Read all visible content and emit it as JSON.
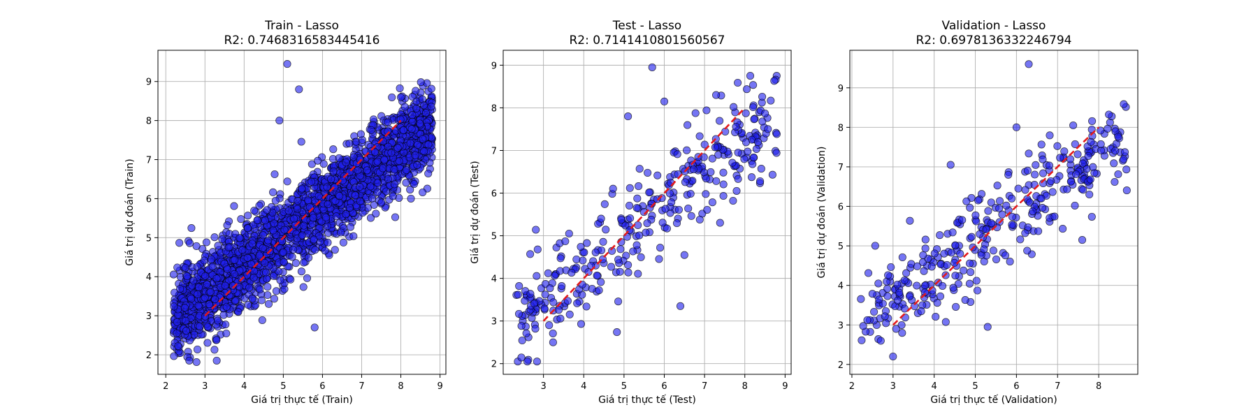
{
  "colors": {
    "points": "#2020ee",
    "point_edge": "#000000",
    "reference_line": "#e31a1c",
    "grid": "#b0b0b0"
  },
  "chart_data": [
    {
      "type": "scatter",
      "title": "Train - Lasso",
      "subtitle": "R2: 0.7468316583445416",
      "xlabel": "Giá trị thực tế (Train)",
      "ylabel": "Giá trị dự đoán (Train)",
      "xlim": [
        1.8,
        9.15
      ],
      "ylim": [
        1.5,
        9.8
      ],
      "xticks": [
        2,
        3,
        4,
        5,
        6,
        7,
        8,
        9
      ],
      "yticks": [
        2,
        3,
        4,
        5,
        6,
        7,
        8,
        9
      ],
      "grid": true,
      "reference_line": {
        "from": [
          3,
          3
        ],
        "to": [
          8,
          8
        ]
      },
      "n_points": 2400,
      "x_range": [
        2.2,
        8.8
      ],
      "approx_fit": {
        "slope": 0.75,
        "intercept": 1.3,
        "noise_sd": 0.55
      },
      "outliers": [
        [
          5.1,
          9.45
        ],
        [
          5.4,
          8.8
        ],
        [
          2.6,
          1.85
        ],
        [
          3.3,
          1.85
        ],
        [
          5.8,
          2.7
        ],
        [
          4.9,
          8.0
        ]
      ],
      "seed": 11
    },
    {
      "type": "scatter",
      "title": "Test - Lasso",
      "subtitle": "R2: 0.7141410801560567",
      "xlabel": "Giá trị thực tế (Test)",
      "ylabel": "Giá trị dự đoán (Test)",
      "xlim": [
        2.0,
        9.15
      ],
      "ylim": [
        1.75,
        9.35
      ],
      "xticks": [
        3,
        4,
        5,
        6,
        7,
        8,
        9
      ],
      "yticks": [
        2,
        3,
        4,
        5,
        6,
        7,
        8,
        9
      ],
      "grid": true,
      "reference_line": {
        "from": [
          3,
          3
        ],
        "to": [
          8,
          8
        ]
      },
      "n_points": 340,
      "x_range": [
        2.3,
        8.8
      ],
      "approx_fit": {
        "slope": 0.74,
        "intercept": 1.35,
        "noise_sd": 0.6
      },
      "outliers": [
        [
          5.7,
          8.95
        ],
        [
          5.1,
          7.8
        ],
        [
          2.6,
          2.05
        ],
        [
          6.0,
          8.15
        ],
        [
          6.4,
          3.35
        ]
      ],
      "seed": 23
    },
    {
      "type": "scatter",
      "title": "Validation - Lasso",
      "subtitle": "R2: 0.6978136332246794",
      "xlabel": "Giá trị thực tế (Validation)",
      "ylabel": "Giá trị dự đoán (Validation)",
      "xlim": [
        1.95,
        8.95
      ],
      "ylim": [
        1.75,
        9.95
      ],
      "xticks": [
        2,
        3,
        4,
        5,
        6,
        7,
        8
      ],
      "yticks": [
        2,
        3,
        4,
        5,
        6,
        7,
        8,
        9
      ],
      "grid": true,
      "reference_line": {
        "from": [
          3,
          3
        ],
        "to": [
          8,
          8
        ]
      },
      "n_points": 340,
      "x_range": [
        2.2,
        8.7
      ],
      "approx_fit": {
        "slope": 0.74,
        "intercept": 1.35,
        "noise_sd": 0.58
      },
      "outliers": [
        [
          6.3,
          9.6
        ],
        [
          6.0,
          8.0
        ],
        [
          5.3,
          2.95
        ],
        [
          3.0,
          2.2
        ],
        [
          7.6,
          5.15
        ],
        [
          4.4,
          7.05
        ]
      ],
      "seed": 37
    }
  ]
}
